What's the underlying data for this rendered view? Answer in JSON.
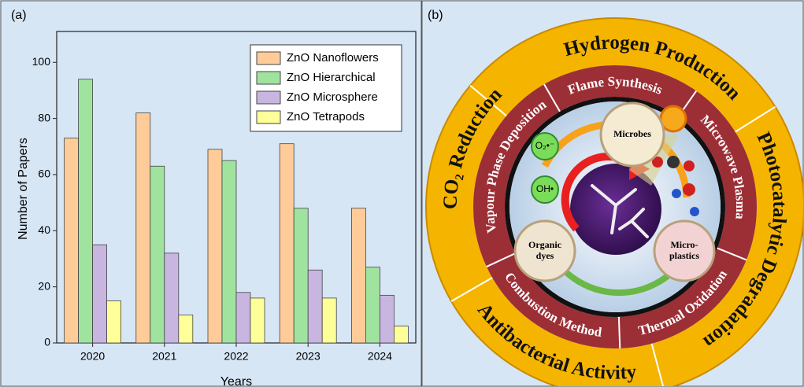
{
  "chart_data": {
    "type": "bar",
    "panel_label": "(a)",
    "x_label": "Years",
    "y_label": "Number of Papers",
    "categories": [
      "2020",
      "2021",
      "2022",
      "2023",
      "2024"
    ],
    "series": [
      {
        "name": "ZnO Nanoflowers",
        "color": "#ffcc99",
        "values": [
          73,
          82,
          69,
          71,
          48
        ]
      },
      {
        "name": "ZnO Hierarchical",
        "color": "#9fe39f",
        "values": [
          94,
          63,
          65,
          48,
          27
        ]
      },
      {
        "name": "ZnO Microsphere",
        "color": "#c8b6e0",
        "values": [
          35,
          32,
          18,
          26,
          17
        ]
      },
      {
        "name": "ZnO Tetrapods",
        "color": "#ffff99",
        "values": [
          15,
          10,
          16,
          16,
          6
        ]
      }
    ],
    "ylim": [
      0,
      111
    ],
    "yticks": [
      0,
      20,
      40,
      60,
      80,
      100
    ],
    "legend": "upper right"
  },
  "diagram": {
    "panel_label": "(b)",
    "outer_ring": [
      "Hydrogen Production",
      "Photocatalytic Degradation",
      "Antibacterial Activity",
      "CO₂ Reduction"
    ],
    "inner_ring": [
      "Flame Synthesis",
      "Microwave Plasma",
      "Thermal Oxidation",
      "Combustion Method",
      "Vapour Phase Deposition"
    ],
    "nodes": [
      {
        "lines": [
          "Microbes"
        ]
      },
      {
        "lines": [
          "Organic",
          "dyes"
        ]
      },
      {
        "lines": [
          "Micro-",
          "plastics"
        ]
      }
    ],
    "species": [
      "O₂•⁻",
      "OH•"
    ]
  }
}
